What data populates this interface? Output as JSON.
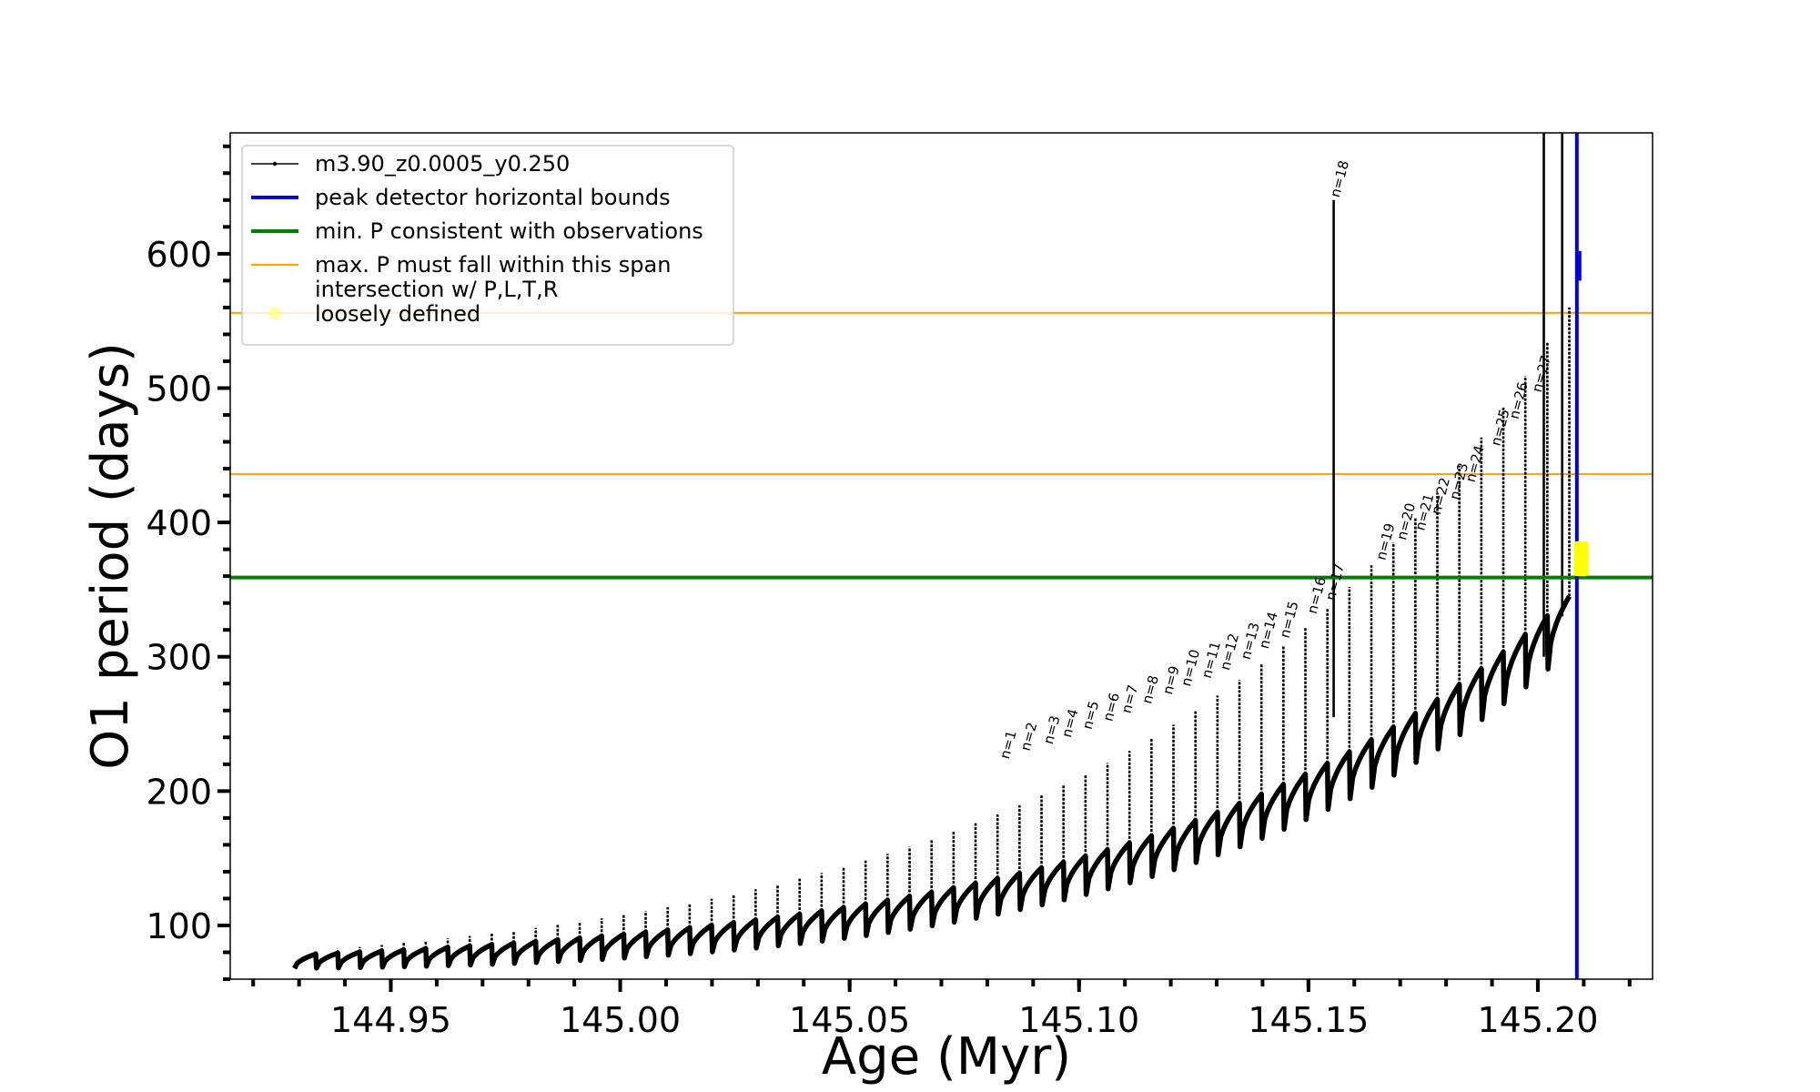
{
  "chart_data": {
    "type": "line",
    "xlabel": "Age (Myr)",
    "ylabel": "O1 period (days)",
    "xlim": [
      144.915,
      145.225
    ],
    "ylim": [
      60,
      690
    ],
    "x_ticks": [
      144.95,
      145.0,
      145.05,
      145.1,
      145.15,
      145.2
    ],
    "x_tick_labels": [
      "144.95",
      "145.00",
      "145.05",
      "145.10",
      "145.15",
      "145.20"
    ],
    "y_ticks": [
      100,
      200,
      300,
      400,
      500,
      600
    ],
    "y_tick_labels": [
      "100",
      "200",
      "300",
      "400",
      "500",
      "600"
    ],
    "grid": false,
    "legend_position": "top-left",
    "legend": [
      {
        "label": "m3.90_z0.0005_y0.250",
        "color": "#000000",
        "style": "line-dot"
      },
      {
        "label": "peak detector horizontal bounds",
        "color": "#0000dd",
        "style": "line"
      },
      {
        "label": "min. P consistent with observations",
        "color": "#008000",
        "style": "line"
      },
      {
        "label": "max. P must fall within this span",
        "color": "#ffa500",
        "style": "line"
      },
      {
        "label": "intersection w/ P,L,T,R",
        "label2": "loosely defined",
        "color": "#ffff66",
        "style": "dot"
      }
    ],
    "reference_lines": {
      "min_period": 359,
      "max_period_span": [
        436,
        556
      ],
      "peak_detector_x": 145.2085
    },
    "series": [
      {
        "name": "m3.90_z0.0005_y0.250",
        "pulses": {
          "x_start": 144.929,
          "x_end": 145.207,
          "count": 58,
          "baseline_start": 78,
          "baseline_end": 345,
          "peak_start": 80,
          "peak_end": 560,
          "trough_drop_start": 10,
          "trough_drop_end": 40
        }
      }
    ],
    "annotations": [
      {
        "text": "n=1",
        "x": 145.0835,
        "y": 222
      },
      {
        "text": "n=2",
        "x": 145.088,
        "y": 228
      },
      {
        "text": "n=3",
        "x": 145.093,
        "y": 233
      },
      {
        "text": "n=4",
        "x": 145.097,
        "y": 238
      },
      {
        "text": "n=5",
        "x": 145.1015,
        "y": 244
      },
      {
        "text": "n=6",
        "x": 145.106,
        "y": 250
      },
      {
        "text": "n=7",
        "x": 145.11,
        "y": 256
      },
      {
        "text": "n=8",
        "x": 145.1145,
        "y": 263
      },
      {
        "text": "n=9",
        "x": 145.119,
        "y": 270
      },
      {
        "text": "n=10",
        "x": 145.123,
        "y": 276
      },
      {
        "text": "n=11",
        "x": 145.1275,
        "y": 282
      },
      {
        "text": "n=12",
        "x": 145.1315,
        "y": 288
      },
      {
        "text": "n=13",
        "x": 145.136,
        "y": 296
      },
      {
        "text": "n=14",
        "x": 145.14,
        "y": 304
      },
      {
        "text": "n=15",
        "x": 145.1445,
        "y": 312
      },
      {
        "text": "n=16",
        "x": 145.1505,
        "y": 330
      },
      {
        "text": "n=17",
        "x": 145.1545,
        "y": 340
      },
      {
        "text": "n=18",
        "x": 145.1555,
        "y": 640
      },
      {
        "text": "n=19",
        "x": 145.1655,
        "y": 370
      },
      {
        "text": "n=20",
        "x": 145.17,
        "y": 385
      },
      {
        "text": "n=21",
        "x": 145.174,
        "y": 392
      },
      {
        "text": "n=22",
        "x": 145.1775,
        "y": 404
      },
      {
        "text": "n=23",
        "x": 145.1815,
        "y": 415
      },
      {
        "text": "n=24",
        "x": 145.185,
        "y": 428
      },
      {
        "text": "n=25",
        "x": 145.1905,
        "y": 455
      },
      {
        "text": "n=26",
        "x": 145.1945,
        "y": 475
      },
      {
        "text": "n=27",
        "x": 145.1995,
        "y": 495
      }
    ],
    "highlight": {
      "x": 145.209,
      "y_range": [
        360,
        386
      ]
    }
  }
}
